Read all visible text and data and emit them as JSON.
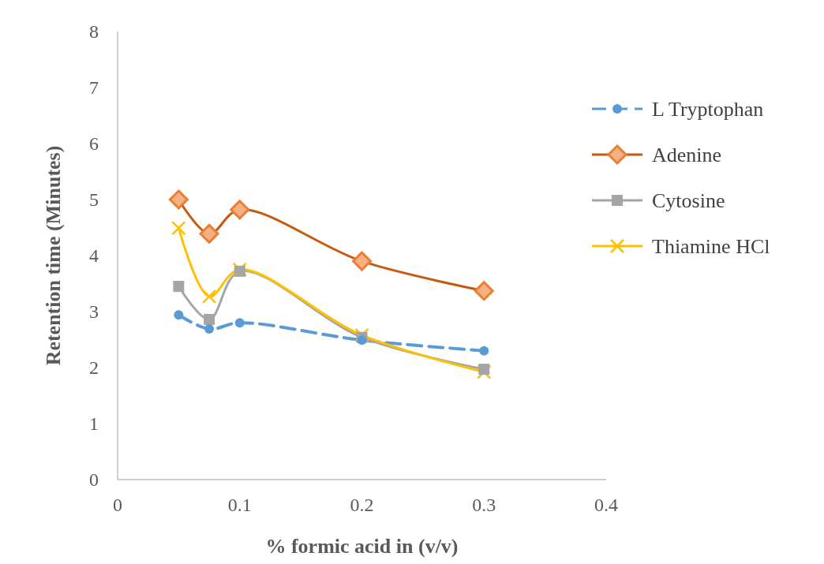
{
  "chart_data": {
    "type": "line",
    "xlabel": "% formic acid in (v/v)",
    "ylabel": "Retention time (Minutes)",
    "x": [
      0.05,
      0.075,
      0.1,
      0.2,
      0.3
    ],
    "xlim": [
      0,
      0.4
    ],
    "xticks": [
      0,
      0.1,
      0.2,
      0.3,
      0.4
    ],
    "ylim": [
      0,
      8
    ],
    "yticks": [
      0,
      1,
      2,
      3,
      4,
      5,
      6,
      7,
      8
    ],
    "grid": false,
    "legend": "right",
    "series": [
      {
        "name": "L Tryptophan",
        "color": "#5b9bd5",
        "values": [
          2.94,
          2.69,
          2.8,
          2.49,
          2.3
        ],
        "marker": "circle",
        "line_style": "dashed"
      },
      {
        "name": "Adenine",
        "color": "#c55a11",
        "values": [
          5.0,
          4.39,
          4.82,
          3.9,
          3.37
        ],
        "marker": "diamond",
        "line_style": "solid"
      },
      {
        "name": "Cytosine",
        "color": "#a5a5a5",
        "values": [
          3.45,
          2.86,
          3.72,
          2.54,
          1.97
        ],
        "marker": "square",
        "line_style": "solid"
      },
      {
        "name": "Thiamine HCl",
        "color": "#ffc000",
        "values": [
          4.49,
          3.27,
          3.75,
          2.58,
          1.92
        ],
        "marker": "cross",
        "line_style": "solid"
      }
    ]
  }
}
